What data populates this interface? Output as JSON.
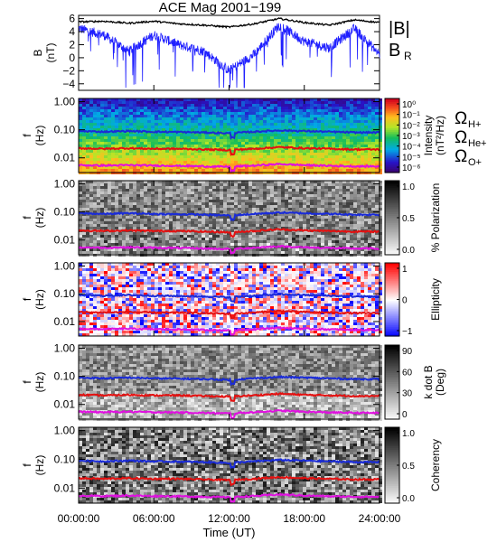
{
  "title": "ACE Mag 2001−199",
  "colors": {
    "B_total": "#000000",
    "B_R": "#1f1fff",
    "H_plus": "#1a2bd8",
    "He_plus": "#e41010",
    "O_plus": "#e010e0",
    "text": "#000000"
  },
  "x_axis": {
    "label": "Time (UT)",
    "ticks": [
      "00:00:00",
      "06:00:00",
      "12:00:00",
      "18:00:00",
      "24:00:00"
    ],
    "tick_hours": [
      0,
      6,
      12,
      18,
      24
    ],
    "range": [
      0,
      24
    ]
  },
  "legend_top": {
    "total": "|B|",
    "radial": "B",
    "radial_sub": "R"
  },
  "legend_ions": [
    {
      "sym": "Ω",
      "sub": "H+",
      "color": "#1a2bd8"
    },
    {
      "sym": "Ω",
      "sub": "He+",
      "color": "#e41010"
    },
    {
      "sym": "Ω",
      "sub": "O+",
      "color": "#e010e0"
    }
  ],
  "panels": [
    {
      "kind": "line",
      "ylabel": [
        "B",
        "(nT)"
      ],
      "yticks": [
        "6",
        "4",
        "2",
        "0",
        "−2",
        "−4"
      ],
      "ytick_values": [
        6,
        4,
        2,
        0,
        -2,
        -4
      ]
    },
    {
      "kind": "spec",
      "scheme": "rainbow",
      "ylabel": [
        "f",
        "(Hz)"
      ],
      "yticks": [
        "1.00",
        "0.10",
        "0.01"
      ],
      "cbar_label": [
        "Intensity",
        "(nT²/Hz)"
      ],
      "cbar_ticks": [
        "10⁰",
        "10⁻¹",
        "10⁻²",
        "10⁻³",
        "10⁻⁴",
        "10⁻⁵",
        "10⁻⁶"
      ]
    },
    {
      "kind": "spec",
      "scheme": "gray",
      "ylabel": [
        "f",
        "(Hz)"
      ],
      "yticks": [
        "1.00",
        "0.10",
        "0.01"
      ],
      "cbar_label": [
        "% Polarization"
      ],
      "cbar_ticks": [
        "1.0",
        "0.5",
        "0.0"
      ]
    },
    {
      "kind": "spec",
      "scheme": "bwr",
      "ylabel": [
        "f",
        "(Hz)"
      ],
      "yticks": [
        "1.00",
        "0.10",
        "0.01"
      ],
      "cbar_label": [
        "Ellipticity"
      ],
      "cbar_ticks": [
        "1",
        "0",
        "−1"
      ]
    },
    {
      "kind": "spec",
      "scheme": "gray",
      "ylabel": [
        "f",
        "(Hz)"
      ],
      "yticks": [
        "1.00",
        "0.10",
        "0.01"
      ],
      "cbar_label": [
        "k dot B",
        "(Deg)"
      ],
      "cbar_ticks": [
        "90",
        "60",
        "30",
        "0"
      ]
    },
    {
      "kind": "spec",
      "scheme": "gray",
      "ylabel": [
        "f",
        "(Hz)"
      ],
      "yticks": [
        "1.00",
        "0.10",
        "0.01"
      ],
      "cbar_label": [
        "Coherency"
      ],
      "cbar_ticks": [
        "1.0",
        "0.5",
        "0.0"
      ]
    }
  ],
  "chart_data": {
    "type": "heatmap",
    "title": "ACE Mag 2001−199",
    "xlabel": "Time (UT)",
    "xlim_hours": [
      0,
      24
    ],
    "line_panel": {
      "ylabel": "B (nT)",
      "ylim": [
        -5,
        6.5
      ],
      "series": [
        {
          "name": "|B|",
          "hours": [
            0,
            2,
            4,
            6,
            8,
            10,
            12,
            14,
            16,
            18,
            20,
            22,
            24
          ],
          "values": [
            5.5,
            5.6,
            5.3,
            5.6,
            5.2,
            5.0,
            4.7,
            5.2,
            6.0,
            5.4,
            5.0,
            5.8,
            5.4
          ]
        },
        {
          "name": "B_R",
          "hours": [
            0,
            2,
            4,
            6,
            8,
            10,
            12,
            14,
            16,
            18,
            20,
            22,
            24
          ],
          "values": [
            4.5,
            3.5,
            1.0,
            3.5,
            2.0,
            1.0,
            -2.0,
            0.5,
            5.0,
            2.5,
            1.5,
            4.5,
            0.5
          ]
        }
      ]
    },
    "frequency_axis": {
      "scale": "log",
      "ylim_hz": [
        0.003,
        1.3
      ]
    },
    "gyrofrequency_lines": [
      {
        "name": "ΩH+",
        "hours": [
          0,
          2,
          4,
          6,
          8,
          10,
          12,
          14,
          16,
          18,
          20,
          22,
          24
        ],
        "hz": [
          0.09,
          0.085,
          0.09,
          0.085,
          0.083,
          0.08,
          0.075,
          0.085,
          0.095,
          0.09,
          0.085,
          0.08,
          0.08
        ]
      },
      {
        "name": "ΩHe+",
        "hours": [
          0,
          2,
          4,
          6,
          8,
          10,
          12,
          14,
          16,
          18,
          20,
          22,
          24
        ],
        "hz": [
          0.022,
          0.021,
          0.022,
          0.021,
          0.021,
          0.02,
          0.019,
          0.021,
          0.024,
          0.022,
          0.021,
          0.02,
          0.02
        ]
      },
      {
        "name": "ΩO+",
        "hours": [
          0,
          2,
          4,
          6,
          8,
          10,
          12,
          14,
          16,
          18,
          20,
          22,
          24
        ],
        "hz": [
          0.0055,
          0.0053,
          0.0055,
          0.0053,
          0.0052,
          0.005,
          0.0048,
          0.0053,
          0.006,
          0.0055,
          0.0052,
          0.005,
          0.005
        ]
      }
    ]
  }
}
